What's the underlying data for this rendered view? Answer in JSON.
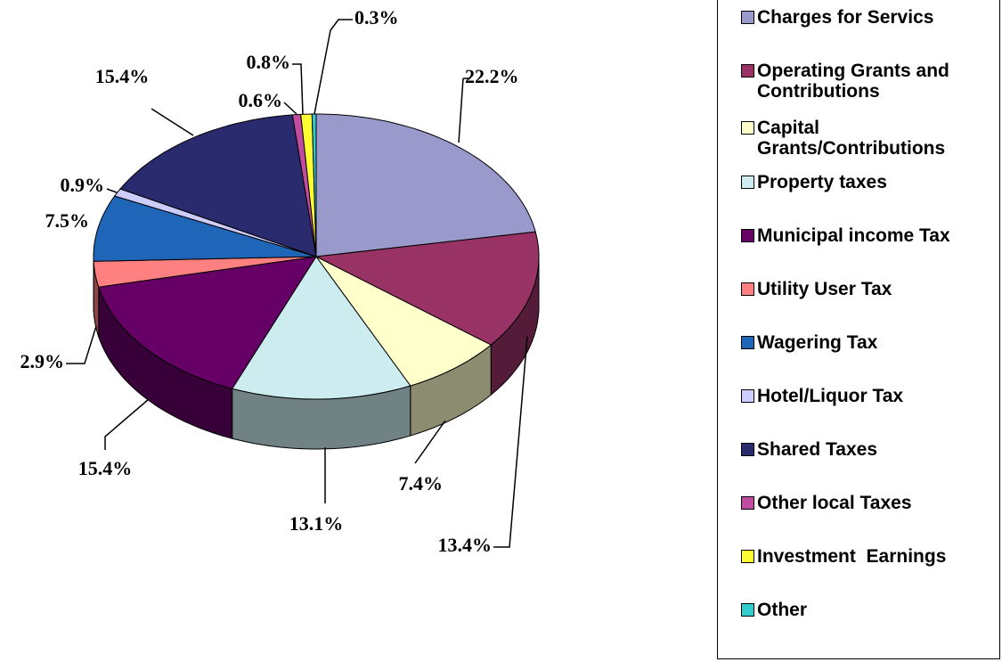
{
  "chart_data": {
    "type": "pie",
    "categories": [
      "Charges for Servics",
      "Operating Grants and Contributions",
      "Capital Grants/Contributions",
      "Property taxes",
      "Municipal income Tax",
      "Utility User Tax",
      "Wagering Tax",
      "Hotel/Liquor Tax",
      "Shared Taxes",
      "Other local Taxes",
      "Investment  Earnings",
      "Other"
    ],
    "values": [
      22.2,
      13.4,
      7.4,
      13.1,
      15.4,
      2.9,
      7.5,
      0.9,
      15.4,
      0.6,
      0.8,
      0.3
    ],
    "value_labels": [
      "22.2%",
      "13.4%",
      "7.4%",
      "13.1%",
      "15.4%",
      "2.9%",
      "7.5%",
      "0.9%",
      "15.4%",
      "0.6%",
      "0.8%",
      "0.3%"
    ],
    "colors": [
      "#9999cc",
      "#993366",
      "#ffffcc",
      "#ccecf0",
      "#660066",
      "#ff8080",
      "#1f66b8",
      "#ccccff",
      "#2a2a6e",
      "#c04ca0",
      "#ffff33",
      "#33cccc"
    ],
    "legend": "right"
  }
}
